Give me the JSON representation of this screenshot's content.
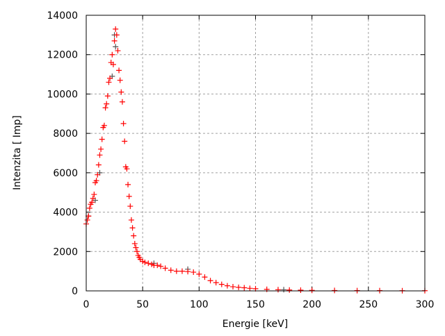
{
  "chart_data": {
    "type": "scatter",
    "title": "",
    "xlabel": "Energie [keV]",
    "ylabel": "Intenzita [ Imp]",
    "xlim": [
      0,
      300
    ],
    "ylim": [
      0,
      14000
    ],
    "xticks": [
      0,
      50,
      100,
      150,
      200,
      250,
      300
    ],
    "yticks": [
      0,
      2000,
      4000,
      6000,
      8000,
      10000,
      12000,
      14000
    ],
    "grid": true,
    "legend": "none",
    "marker": "plus",
    "series": [
      {
        "color": "#555555",
        "x": [
          2,
          8,
          12,
          23,
          25,
          26,
          60,
          90,
          175
        ],
        "y": [
          3800,
          4600,
          6000,
          10900,
          13000,
          12400,
          1400,
          1100,
          60
        ]
      },
      {
        "color": "#ff0000",
        "x": [
          0,
          1,
          2,
          3,
          4,
          5,
          6,
          7,
          8,
          9,
          10,
          11,
          12,
          13,
          14,
          15,
          16,
          17,
          18,
          19,
          20,
          21,
          22,
          23,
          24,
          25,
          26,
          27,
          28,
          29,
          30,
          31,
          32,
          33,
          34,
          35,
          36,
          37,
          38,
          39,
          40,
          41,
          42,
          43,
          44,
          45,
          46,
          47,
          48,
          50,
          52,
          55,
          58,
          60,
          63,
          66,
          70,
          75,
          80,
          85,
          90,
          95,
          100,
          105,
          110,
          115,
          120,
          125,
          130,
          135,
          140,
          145,
          150,
          160,
          170,
          180,
          190,
          200,
          220,
          240,
          260,
          280,
          300
        ],
        "y": [
          3400,
          3600,
          3800,
          4200,
          4400,
          4500,
          4700,
          4900,
          5500,
          5600,
          5900,
          6400,
          6900,
          7200,
          7700,
          8300,
          8400,
          9300,
          9500,
          9900,
          10600,
          10800,
          11600,
          12000,
          11500,
          12700,
          13300,
          13000,
          12200,
          11200,
          10700,
          10100,
          9600,
          8500,
          7600,
          6300,
          6200,
          5400,
          4800,
          4300,
          3600,
          3200,
          2800,
          2400,
          2200,
          2000,
          1800,
          1700,
          1600,
          1500,
          1450,
          1400,
          1350,
          1300,
          1300,
          1250,
          1150,
          1050,
          1000,
          1000,
          980,
          950,
          850,
          700,
          520,
          420,
          330,
          260,
          210,
          180,
          160,
          130,
          110,
          80,
          60,
          45,
          35,
          28,
          20,
          15,
          12,
          10,
          8
        ]
      }
    ]
  }
}
